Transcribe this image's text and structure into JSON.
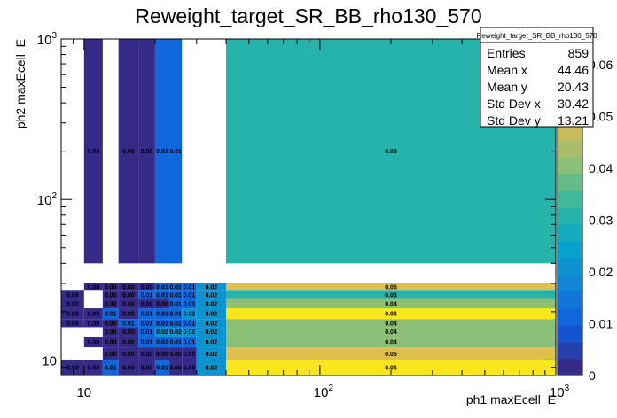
{
  "chart_data": {
    "type": "heatmap",
    "title": "Reweight_target_SR_BB_rho130_570",
    "xlabel": "ph1 maxEcell_E",
    "ylabel": "ph2 maxEcell_E",
    "x_scale": "log",
    "y_scale": "log",
    "xlim": [
      8,
      1000
    ],
    "ylim": [
      8,
      1000
    ],
    "x_edges": [
      8,
      10,
      12,
      14,
      17,
      20,
      23,
      26,
      30,
      40,
      1000
    ],
    "y_edges": [
      8,
      10,
      12,
      14,
      16,
      18,
      21,
      24,
      27,
      30,
      40,
      1000
    ],
    "z_range": [
      0,
      0.065
    ],
    "z_ticks": [
      "0",
      "0.01",
      "0.02",
      "0.03",
      "0.04",
      "0.05",
      "0.06"
    ],
    "cells": [
      [
        0,
        0,
        0.0
      ],
      [
        1,
        0,
        0.0
      ],
      [
        2,
        0,
        0.01
      ],
      [
        3,
        0,
        0.0
      ],
      [
        4,
        0,
        0.0
      ],
      [
        5,
        0,
        0.01
      ],
      [
        6,
        0,
        0.0
      ],
      [
        7,
        0,
        0.0
      ],
      [
        8,
        0,
        0.02
      ],
      [
        9,
        0,
        0.06
      ],
      [
        2,
        1,
        0.0
      ],
      [
        3,
        1,
        0.0
      ],
      [
        4,
        1,
        0.0
      ],
      [
        5,
        1,
        0.0
      ],
      [
        6,
        1,
        0.0
      ],
      [
        7,
        1,
        0.0
      ],
      [
        8,
        1,
        0.02
      ],
      [
        9,
        1,
        0.05
      ],
      [
        1,
        2,
        0.0
      ],
      [
        2,
        2,
        0.0
      ],
      [
        3,
        2,
        0.0
      ],
      [
        4,
        2,
        0.01
      ],
      [
        5,
        2,
        0.01
      ],
      [
        6,
        2,
        0.01
      ],
      [
        7,
        2,
        0.01
      ],
      [
        8,
        2,
        0.02
      ],
      [
        9,
        2,
        0.04
      ],
      [
        2,
        3,
        0.0
      ],
      [
        3,
        3,
        0.0
      ],
      [
        4,
        3,
        0.01
      ],
      [
        5,
        3,
        0.02
      ],
      [
        6,
        3,
        0.02
      ],
      [
        7,
        3,
        0.02
      ],
      [
        8,
        3,
        0.02
      ],
      [
        9,
        3,
        0.04
      ],
      [
        0,
        4,
        0.0
      ],
      [
        1,
        4,
        0.0
      ],
      [
        2,
        4,
        0.0
      ],
      [
        3,
        4,
        0.01
      ],
      [
        4,
        4,
        0.01
      ],
      [
        5,
        4,
        0.01
      ],
      [
        6,
        4,
        0.01
      ],
      [
        7,
        4,
        0.01
      ],
      [
        8,
        4,
        0.02
      ],
      [
        9,
        4,
        0.04
      ],
      [
        0,
        5,
        0.0
      ],
      [
        1,
        5,
        0.0
      ],
      [
        2,
        5,
        0.01
      ],
      [
        3,
        5,
        0.0
      ],
      [
        4,
        5,
        0.01
      ],
      [
        5,
        5,
        0.01
      ],
      [
        6,
        5,
        0.01
      ],
      [
        7,
        5,
        0.02
      ],
      [
        8,
        5,
        0.02
      ],
      [
        9,
        5,
        0.06
      ],
      [
        0,
        6,
        0.0
      ],
      [
        2,
        6,
        0.0
      ],
      [
        3,
        6,
        0.0
      ],
      [
        4,
        6,
        0.0
      ],
      [
        5,
        6,
        0.0
      ],
      [
        6,
        6,
        0.01
      ],
      [
        7,
        6,
        0.01
      ],
      [
        8,
        6,
        0.02
      ],
      [
        9,
        6,
        0.04
      ],
      [
        0,
        7,
        0.0
      ],
      [
        2,
        7,
        0.0
      ],
      [
        3,
        7,
        0.0
      ],
      [
        4,
        7,
        0.01
      ],
      [
        5,
        7,
        0.01
      ],
      [
        6,
        7,
        0.01
      ],
      [
        7,
        7,
        0.01
      ],
      [
        8,
        7,
        0.02
      ],
      [
        9,
        7,
        0.03
      ],
      [
        1,
        8,
        0.0
      ],
      [
        2,
        8,
        0.0
      ],
      [
        3,
        8,
        0.0
      ],
      [
        4,
        8,
        0.0
      ],
      [
        5,
        8,
        0.01
      ],
      [
        6,
        8,
        0.01
      ],
      [
        7,
        8,
        0.01
      ],
      [
        8,
        8,
        0.02
      ],
      [
        9,
        8,
        0.05
      ],
      [
        1,
        10,
        0.0
      ],
      [
        3,
        10,
        0.0
      ],
      [
        4,
        10,
        0.0
      ],
      [
        5,
        10,
        0.01
      ],
      [
        6,
        10,
        0.01
      ],
      [
        9,
        10,
        0.03
      ]
    ],
    "grid": false,
    "stats_box": {
      "header": "Reweight_target_SR_BB_rho130_570",
      "rows": [
        {
          "label": "Entries",
          "value": "859"
        },
        {
          "label": "Mean x",
          "value": "44.46"
        },
        {
          "label": "Mean y",
          "value": "20.43"
        },
        {
          "label": "Std Dev x",
          "value": "30.42"
        },
        {
          "label": "Std Dev y",
          "value": "13.21"
        }
      ],
      "placement": "top-right"
    }
  }
}
